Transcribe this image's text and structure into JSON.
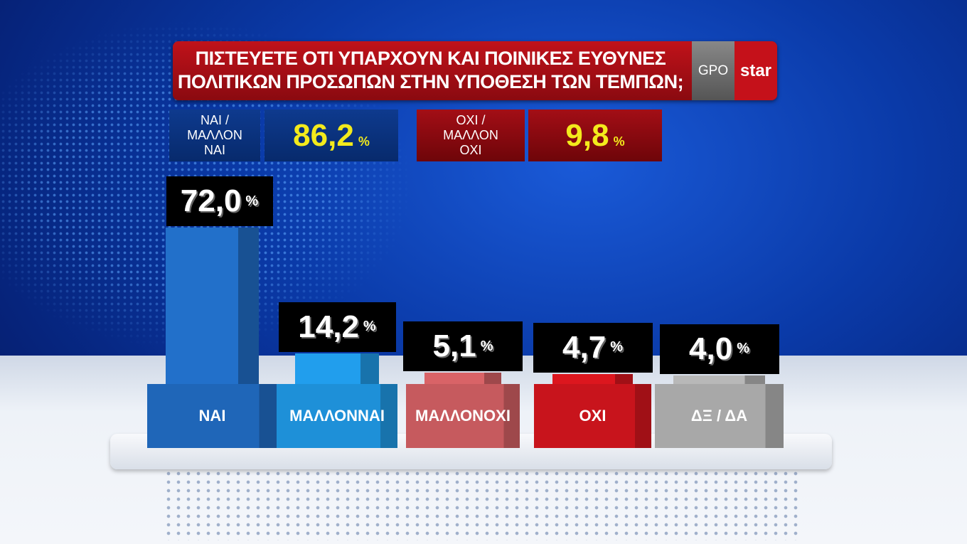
{
  "header": {
    "title_line1": "ΠΙΣΤΕΥΕΤΕ ΟΤΙ ΥΠΑΡΧΟΥΝ ΚΑΙ ΠΟΙΝΙΚΕΣ ΕΥΘΥΝΕΣ",
    "title_line2": "ΠΟΛΙΤΙΚΩΝ ΠΡΟΣΩΠΩΝ ΣΤΗΝ ΥΠΟΘΕΣΗ ΤΩΝ ΤΕΜΠΩΝ;",
    "logo": "GPO star"
  },
  "summary": [
    {
      "label_lines": [
        "ΝΑΙ /",
        "ΜΑΛΛΟΝ",
        "ΝΑΙ"
      ],
      "value": "86,2",
      "unit": "%"
    },
    {
      "label_lines": [
        "ΟΧΙ /",
        "ΜΑΛΛΟΝ",
        "ΟΧΙ"
      ],
      "value": "9,8",
      "unit": "%"
    }
  ],
  "chart_data": {
    "type": "bar",
    "title": "ΠΙΣΤΕΥΕΤΕ ΟΤΙ ΥΠΑΡΧΟΥΝ ΚΑΙ ΠΟΙΝΙΚΕΣ ΕΥΘΥΝΕΣ ΠΟΛΙΤΙΚΩΝ ΠΡΟΣΩΠΩΝ ΣΤΗΝ ΥΠΟΘΕΣΗ ΤΩΝ ΤΕΜΠΩΝ;",
    "categories": [
      "ΝΑΙ",
      "ΜΑΛΛΟΝ ΝΑΙ",
      "ΜΑΛΛΟΝ ΟΧΙ",
      "ΟΧΙ",
      "ΔΞ / ΔΑ"
    ],
    "category_lines": [
      [
        "ΝΑΙ"
      ],
      [
        "ΜΑΛΛΟΝ",
        "ΝΑΙ"
      ],
      [
        "ΜΑΛΛΟΝ",
        "ΟΧΙ"
      ],
      [
        "ΟΧΙ"
      ],
      [
        "ΔΞ / ΔΑ"
      ]
    ],
    "values": [
      72.0,
      14.2,
      5.1,
      4.7,
      4.0
    ],
    "labels": [
      "72,0",
      "14,2",
      "5,1",
      "4,7",
      "4,0"
    ],
    "unit": "%",
    "colors": [
      "#1f66b8",
      "#1e90d8",
      "#c65a5e",
      "#c8141c",
      "#a8a8a8"
    ],
    "grid": false
  }
}
